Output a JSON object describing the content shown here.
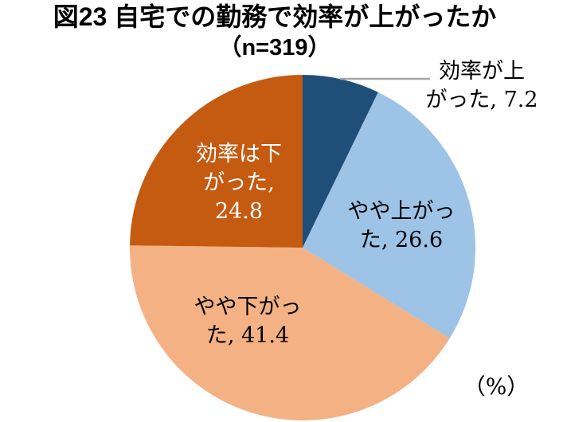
{
  "chart_data": {
    "type": "pie",
    "title": "図23 自宅での勤務で効率が上がったか",
    "subtitle": "（n=319）",
    "n": 319,
    "unit_label": "（%）",
    "start_angle_deg": 0,
    "direction": "clockwise",
    "legend": "none",
    "categories": [
      "効率が上がった",
      "やや上がった",
      "やや下がった",
      "効率は下がった"
    ],
    "values": [
      7.2,
      26.6,
      41.4,
      24.8
    ],
    "leader_line_color": "#A6A6A6",
    "slices": [
      {
        "name": "効率が上がった",
        "value": 7.2,
        "color": "#1F4E79",
        "callout": "効率が上\nがった, 7.2",
        "text_color": "#000000",
        "label_placement": "outside-top-right-with-leader-line"
      },
      {
        "name": "やや上がった",
        "value": 26.6,
        "color": "#9DC3E6",
        "callout": "やや上がっ\nた, 26.6",
        "text_color": "#000000",
        "label_placement": "inside"
      },
      {
        "name": "やや下がった",
        "value": 41.4,
        "color": "#F4B183",
        "callout": "やや下がっ\nた, 41.4",
        "text_color": "#000000",
        "label_placement": "inside"
      },
      {
        "name": "効率は下がった",
        "value": 24.8,
        "color": "#C55A11",
        "callout": "効率は下\nがった,\n24.8",
        "text_color": "#FFFFFF",
        "label_placement": "inside"
      }
    ]
  }
}
